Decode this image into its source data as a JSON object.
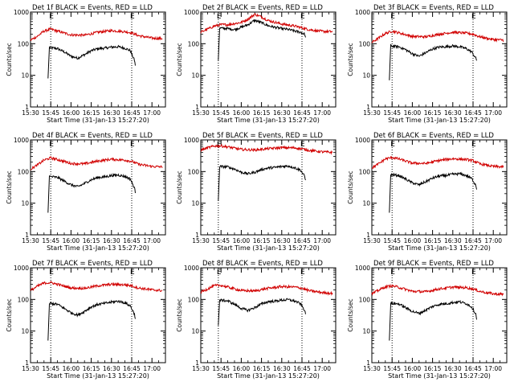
{
  "figure": {
    "ylabel": "Counts/sec",
    "xlabel": "Start Time (31-Jan-13 15:27:20)",
    "colors": {
      "events": "#000000",
      "lld": "#d10000",
      "axes": "#000000",
      "markers": "#000000"
    },
    "marker_letters": [
      "E",
      "E"
    ]
  },
  "chart_data": [
    {
      "type": "line",
      "title": "Det 1f BLACK = Events, RED = LLD",
      "xlabel": "Start Time (31-Jan-13 15:27:20)",
      "ylabel": "Counts/sec",
      "xlim": [
        "15:30",
        "17:10"
      ],
      "ylim": [
        1,
        1000
      ],
      "yscale": "log",
      "xticks": [
        "15:30",
        "15:45",
        "16:00",
        "16:15",
        "16:30",
        "16:45",
        "17:00"
      ],
      "yticks": [
        "1",
        "10",
        "100",
        "1000"
      ],
      "markers": [
        "15:45",
        "16:45"
      ],
      "event_start": "15:43",
      "event_end": "16:48",
      "series": [
        {
          "name": "BLACK = Events",
          "color": "#000000",
          "x": [
            "15:43",
            "15:44",
            "15:50",
            "15:55",
            "16:00",
            "16:05",
            "16:10",
            "16:15",
            "16:20",
            "16:25",
            "16:30",
            "16:35",
            "16:40",
            "16:44",
            "16:47",
            "16:48"
          ],
          "values": [
            8,
            75,
            70,
            55,
            40,
            35,
            45,
            60,
            70,
            72,
            78,
            80,
            72,
            60,
            30,
            18
          ]
        },
        {
          "name": "RED = LLD",
          "color": "#d10000",
          "x": [
            "15:30",
            "15:35",
            "15:40",
            "15:45",
            "15:50",
            "16:00",
            "16:10",
            "16:20",
            "16:30",
            "16:40",
            "16:45",
            "16:50",
            "17:00",
            "17:08"
          ],
          "values": [
            130,
            170,
            250,
            290,
            250,
            190,
            185,
            230,
            260,
            240,
            220,
            180,
            150,
            145
          ]
        }
      ]
    },
    {
      "type": "line",
      "title": "Det 2f BLACK = Events, RED = LLD",
      "xlabel": "Start Time (31-Jan-13 15:27:20)",
      "ylabel": "Counts/sec",
      "xlim": [
        "15:30",
        "17:10"
      ],
      "ylim": [
        1,
        1000
      ],
      "yscale": "log",
      "xticks": [
        "15:30",
        "15:45",
        "16:00",
        "16:15",
        "16:30",
        "16:45",
        "17:00"
      ],
      "yticks": [
        "1",
        "10",
        "100",
        "1000"
      ],
      "markers": [
        "15:43",
        "16:45"
      ],
      "event_start": "15:43",
      "event_end": "16:48",
      "series": [
        {
          "name": "BLACK = Events",
          "color": "#000000",
          "x": [
            "15:43",
            "15:44",
            "15:50",
            "15:55",
            "16:00",
            "16:05",
            "16:10",
            "16:15",
            "16:20",
            "16:25",
            "16:30",
            "16:35",
            "16:40",
            "16:44",
            "16:47",
            "16:48"
          ],
          "values": [
            30,
            310,
            300,
            280,
            330,
            400,
            550,
            460,
            370,
            330,
            300,
            280,
            250,
            230,
            200,
            130
          ]
        },
        {
          "name": "RED = LLD",
          "color": "#d10000",
          "x": [
            "15:30",
            "15:35",
            "15:40",
            "15:45",
            "15:50",
            "16:00",
            "16:05",
            "16:10",
            "16:15",
            "16:20",
            "16:30",
            "16:40",
            "16:50",
            "17:00",
            "17:08"
          ],
          "values": [
            230,
            290,
            360,
            400,
            400,
            470,
            600,
            850,
            700,
            540,
            420,
            360,
            280,
            245,
            240
          ]
        }
      ]
    },
    {
      "type": "line",
      "title": "Det 3f BLACK = Events, RED = LLD",
      "xlabel": "Start Time (31-Jan-13 15:27:20)",
      "ylabel": "Counts/sec",
      "xlim": [
        "15:30",
        "17:10"
      ],
      "ylim": [
        1,
        1000
      ],
      "yscale": "log",
      "xticks": [
        "15:30",
        "15:45",
        "16:00",
        "16:15",
        "16:30",
        "16:45",
        "17:00"
      ],
      "yticks": [
        "1",
        "10",
        "100",
        "1000"
      ],
      "markers": [
        "15:45",
        "16:45"
      ],
      "event_start": "15:43",
      "event_end": "16:48",
      "series": [
        {
          "name": "BLACK = Events",
          "color": "#000000",
          "x": [
            "15:43",
            "15:44",
            "15:50",
            "15:55",
            "16:00",
            "16:05",
            "16:10",
            "16:15",
            "16:20",
            "16:25",
            "16:30",
            "16:35",
            "16:40",
            "16:44",
            "16:47",
            "16:48"
          ],
          "values": [
            7,
            85,
            80,
            65,
            48,
            40,
            52,
            68,
            78,
            80,
            85,
            80,
            70,
            55,
            35,
            28
          ]
        },
        {
          "name": "RED = LLD",
          "color": "#d10000",
          "x": [
            "15:30",
            "15:35",
            "15:40",
            "15:45",
            "15:50",
            "16:00",
            "16:10",
            "16:20",
            "16:30",
            "16:40",
            "16:45",
            "16:50",
            "17:00",
            "17:08"
          ],
          "values": [
            110,
            150,
            210,
            250,
            220,
            170,
            165,
            200,
            230,
            215,
            200,
            165,
            135,
            130
          ]
        }
      ]
    },
    {
      "type": "line",
      "title": "Det 4f BLACK = Events, RED = LLD",
      "xlabel": "Start Time (31-Jan-13 15:27:20)",
      "ylabel": "Counts/sec",
      "xlim": [
        "15:30",
        "17:10"
      ],
      "ylim": [
        1,
        1000
      ],
      "yscale": "log",
      "xticks": [
        "15:30",
        "15:45",
        "16:00",
        "16:15",
        "16:30",
        "16:45",
        "17:00"
      ],
      "yticks": [
        "1",
        "10",
        "100",
        "1000"
      ],
      "markers": [
        "15:45",
        "16:45"
      ],
      "event_start": "15:43",
      "event_end": "16:48",
      "series": [
        {
          "name": "BLACK = Events",
          "color": "#000000",
          "x": [
            "15:43",
            "15:44",
            "15:50",
            "15:55",
            "16:00",
            "16:05",
            "16:10",
            "16:15",
            "16:20",
            "16:25",
            "16:30",
            "16:35",
            "16:40",
            "16:44",
            "16:47",
            "16:48"
          ],
          "values": [
            5,
            70,
            65,
            50,
            38,
            33,
            42,
            55,
            65,
            68,
            75,
            78,
            70,
            58,
            30,
            20
          ]
        },
        {
          "name": "RED = LLD",
          "color": "#d10000",
          "x": [
            "15:30",
            "15:35",
            "15:40",
            "15:45",
            "15:50",
            "16:00",
            "16:10",
            "16:20",
            "16:30",
            "16:40",
            "16:45",
            "16:50",
            "17:00",
            "17:08"
          ],
          "values": [
            120,
            160,
            230,
            270,
            240,
            180,
            175,
            215,
            245,
            230,
            210,
            170,
            145,
            140
          ]
        }
      ]
    },
    {
      "type": "line",
      "title": "Det 5f BLACK = Events, RED = LLD",
      "xlabel": "Start Time (31-Jan-13 15:27:20)",
      "ylabel": "Counts/sec",
      "xlim": [
        "15:30",
        "17:10"
      ],
      "ylim": [
        1,
        1000
      ],
      "yscale": "log",
      "xticks": [
        "15:30",
        "15:45",
        "16:00",
        "16:15",
        "16:30",
        "16:45",
        "17:00"
      ],
      "yticks": [
        "1",
        "10",
        "100",
        "1000"
      ],
      "markers": [
        "15:43",
        "16:45"
      ],
      "event_start": "15:43",
      "event_end": "16:48",
      "series": [
        {
          "name": "BLACK = Events",
          "color": "#000000",
          "x": [
            "15:43",
            "15:44",
            "15:50",
            "15:55",
            "16:00",
            "16:05",
            "16:10",
            "16:15",
            "16:20",
            "16:25",
            "16:30",
            "16:35",
            "16:40",
            "16:44",
            "16:47",
            "16:48"
          ],
          "values": [
            12,
            145,
            140,
            120,
            95,
            85,
            95,
            115,
            130,
            135,
            145,
            150,
            130,
            110,
            70,
            45
          ]
        },
        {
          "name": "RED = LLD",
          "color": "#d10000",
          "x": [
            "15:30",
            "15:35",
            "15:40",
            "15:45",
            "15:50",
            "16:00",
            "16:10",
            "16:20",
            "16:30",
            "16:40",
            "16:45",
            "16:50",
            "17:00",
            "17:08"
          ],
          "values": [
            470,
            560,
            640,
            650,
            600,
            500,
            480,
            530,
            570,
            560,
            520,
            470,
            420,
            400
          ]
        }
      ]
    },
    {
      "type": "line",
      "title": "Det 6f BLACK = Events, RED = LLD",
      "xlabel": "Start Time (31-Jan-13 15:27:20)",
      "ylabel": "Counts/sec",
      "xlim": [
        "15:30",
        "17:10"
      ],
      "ylim": [
        1,
        1000
      ],
      "yscale": "log",
      "xticks": [
        "15:30",
        "15:45",
        "16:00",
        "16:15",
        "16:30",
        "16:45",
        "17:00"
      ],
      "yticks": [
        "1",
        "10",
        "100",
        "1000"
      ],
      "markers": [
        "15:45",
        "16:45"
      ],
      "event_start": "15:43",
      "event_end": "16:48",
      "series": [
        {
          "name": "BLACK = Events",
          "color": "#000000",
          "x": [
            "15:43",
            "15:44",
            "15:50",
            "15:55",
            "16:00",
            "16:05",
            "16:10",
            "16:15",
            "16:20",
            "16:25",
            "16:30",
            "16:35",
            "16:40",
            "16:44",
            "16:47",
            "16:48"
          ],
          "values": [
            5,
            80,
            75,
            58,
            44,
            38,
            48,
            62,
            72,
            75,
            82,
            85,
            75,
            60,
            38,
            25
          ]
        },
        {
          "name": "RED = LLD",
          "color": "#d10000",
          "x": [
            "15:30",
            "15:35",
            "15:40",
            "15:45",
            "15:50",
            "16:00",
            "16:10",
            "16:20",
            "16:30",
            "16:40",
            "16:45",
            "16:50",
            "17:00",
            "17:08"
          ],
          "values": [
            130,
            175,
            250,
            280,
            250,
            185,
            180,
            225,
            255,
            240,
            220,
            175,
            145,
            140
          ]
        }
      ]
    },
    {
      "type": "line",
      "title": "Det 7f BLACK = Events, RED = LLD",
      "xlabel": "Start Time (31-Jan-13 15:27:20)",
      "ylabel": "Counts/sec",
      "xlim": [
        "15:30",
        "17:10"
      ],
      "ylim": [
        1,
        1000
      ],
      "yscale": "log",
      "xticks": [
        "15:30",
        "15:45",
        "16:00",
        "16:15",
        "16:30",
        "16:45",
        "17:00"
      ],
      "yticks": [
        "1",
        "10",
        "100",
        "1000"
      ],
      "markers": [
        "15:45",
        "16:45"
      ],
      "event_start": "15:43",
      "event_end": "16:48",
      "series": [
        {
          "name": "BLACK = Events",
          "color": "#000000",
          "x": [
            "15:43",
            "15:44",
            "15:50",
            "15:55",
            "16:00",
            "16:05",
            "16:10",
            "16:15",
            "16:20",
            "16:25",
            "16:30",
            "16:35",
            "16:40",
            "16:44",
            "16:47",
            "16:48"
          ],
          "values": [
            5,
            75,
            70,
            52,
            38,
            32,
            42,
            58,
            70,
            75,
            82,
            88,
            78,
            62,
            35,
            22
          ]
        },
        {
          "name": "RED = LLD",
          "color": "#d10000",
          "x": [
            "15:30",
            "15:35",
            "15:40",
            "15:45",
            "15:50",
            "16:00",
            "16:10",
            "16:20",
            "16:30",
            "16:40",
            "16:45",
            "16:50",
            "17:00",
            "17:08"
          ],
          "values": [
            190,
            260,
            330,
            340,
            300,
            230,
            225,
            270,
            300,
            290,
            270,
            230,
            200,
            190
          ]
        }
      ]
    },
    {
      "type": "line",
      "title": "Det 8f BLACK = Events, RED = LLD",
      "xlabel": "Start Time (31-Jan-13 15:27:20)",
      "ylabel": "Counts/sec",
      "xlim": [
        "15:30",
        "17:10"
      ],
      "ylim": [
        1,
        1000
      ],
      "yscale": "log",
      "xticks": [
        "15:30",
        "15:45",
        "16:00",
        "16:15",
        "16:30",
        "16:45",
        "17:00"
      ],
      "yticks": [
        "1",
        "10",
        "100",
        "1000"
      ],
      "markers": [
        "15:43",
        "16:45"
      ],
      "event_start": "15:43",
      "event_end": "16:48",
      "series": [
        {
          "name": "BLACK = Events",
          "color": "#000000",
          "x": [
            "15:43",
            "15:44",
            "15:50",
            "15:55",
            "16:00",
            "16:05",
            "16:10",
            "16:15",
            "16:20",
            "16:25",
            "16:30",
            "16:35",
            "16:40",
            "16:44",
            "16:47",
            "16:48"
          ],
          "values": [
            15,
            95,
            90,
            70,
            52,
            45,
            55,
            72,
            85,
            88,
            95,
            98,
            88,
            72,
            45,
            28
          ]
        },
        {
          "name": "RED = LLD",
          "color": "#d10000",
          "x": [
            "15:30",
            "15:35",
            "15:40",
            "15:45",
            "15:50",
            "16:00",
            "16:10",
            "16:20",
            "16:30",
            "16:40",
            "16:45",
            "16:50",
            "17:00",
            "17:08"
          ],
          "values": [
            170,
            215,
            270,
            280,
            245,
            190,
            185,
            225,
            255,
            245,
            225,
            190,
            165,
            155
          ]
        }
      ]
    },
    {
      "type": "line",
      "title": "Det 9f BLACK = Events, RED = LLD",
      "xlabel": "Start Time (31-Jan-13 15:27:20)",
      "ylabel": "Counts/sec",
      "xlim": [
        "15:30",
        "17:10"
      ],
      "ylim": [
        1,
        1000
      ],
      "yscale": "log",
      "xticks": [
        "15:30",
        "15:45",
        "16:00",
        "16:15",
        "16:30",
        "16:45",
        "17:00"
      ],
      "yticks": [
        "1",
        "10",
        "100",
        "1000"
      ],
      "markers": [
        "15:45",
        "16:45"
      ],
      "event_start": "15:43",
      "event_end": "16:48",
      "series": [
        {
          "name": "BLACK = Events",
          "color": "#000000",
          "x": [
            "15:43",
            "15:44",
            "15:50",
            "15:55",
            "16:00",
            "16:05",
            "16:10",
            "16:15",
            "16:20",
            "16:25",
            "16:30",
            "16:35",
            "16:40",
            "16:44",
            "16:47",
            "16:48"
          ],
          "values": [
            5,
            75,
            72,
            55,
            42,
            36,
            46,
            60,
            70,
            73,
            80,
            84,
            74,
            58,
            35,
            22
          ]
        },
        {
          "name": "RED = LLD",
          "color": "#d10000",
          "x": [
            "15:30",
            "15:35",
            "15:40",
            "15:45",
            "15:50",
            "16:00",
            "16:10",
            "16:20",
            "16:30",
            "16:40",
            "16:45",
            "16:50",
            "17:00",
            "17:08"
          ],
          "values": [
            150,
            195,
            250,
            270,
            240,
            180,
            175,
            215,
            245,
            235,
            215,
            180,
            150,
            145
          ]
        }
      ]
    }
  ]
}
